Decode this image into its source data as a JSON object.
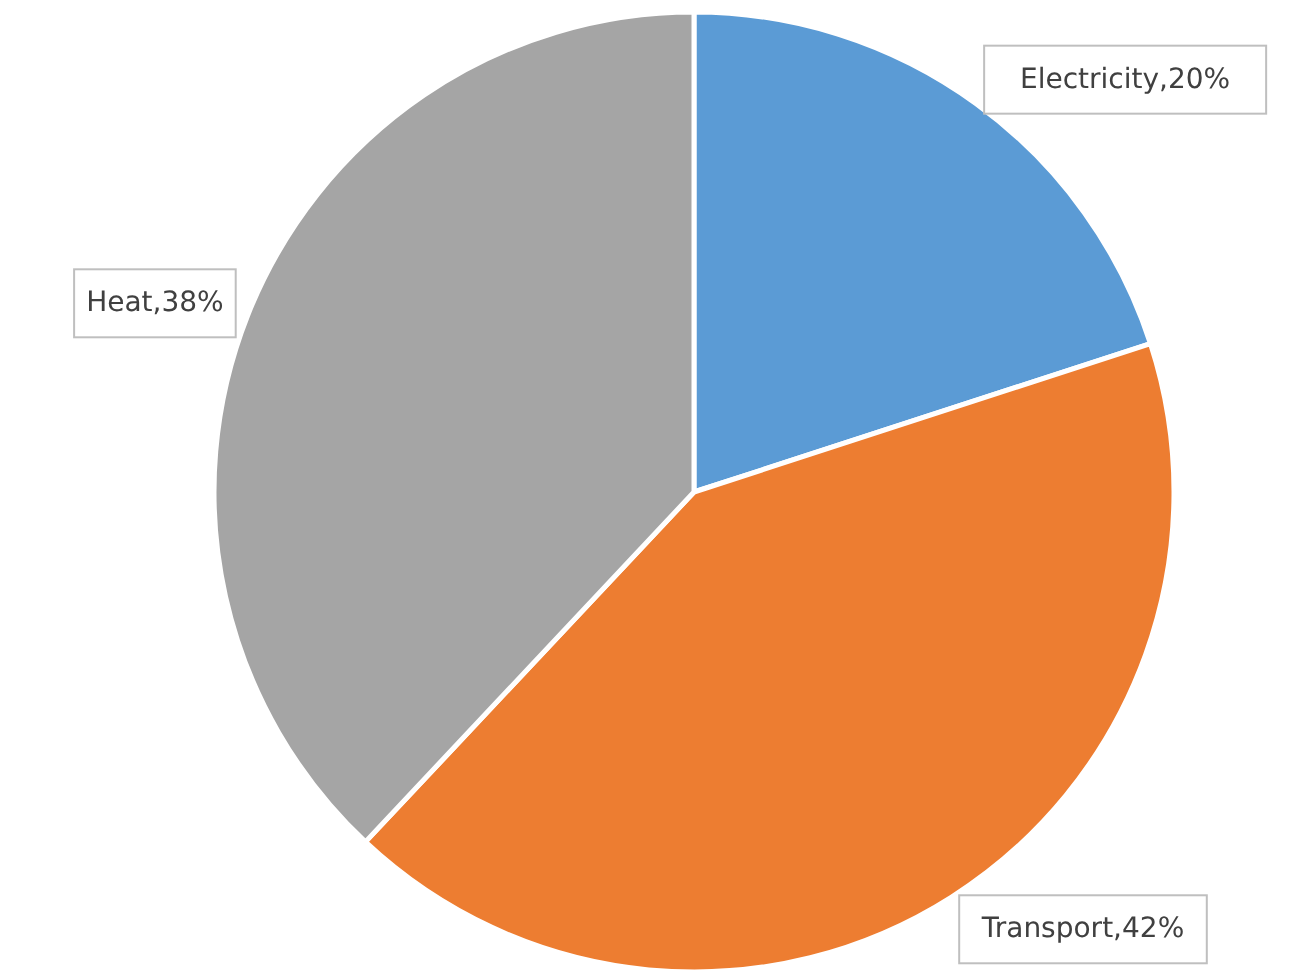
{
  "chart_data": {
    "type": "pie",
    "categories": [
      "Electricity",
      "Transport",
      "Heat"
    ],
    "values": [
      20,
      42,
      38
    ],
    "value_labels": [
      "20%",
      "42%",
      "38%"
    ],
    "colors": [
      "#5b9bd5",
      "#ed7d31",
      "#a5a5a5"
    ]
  }
}
